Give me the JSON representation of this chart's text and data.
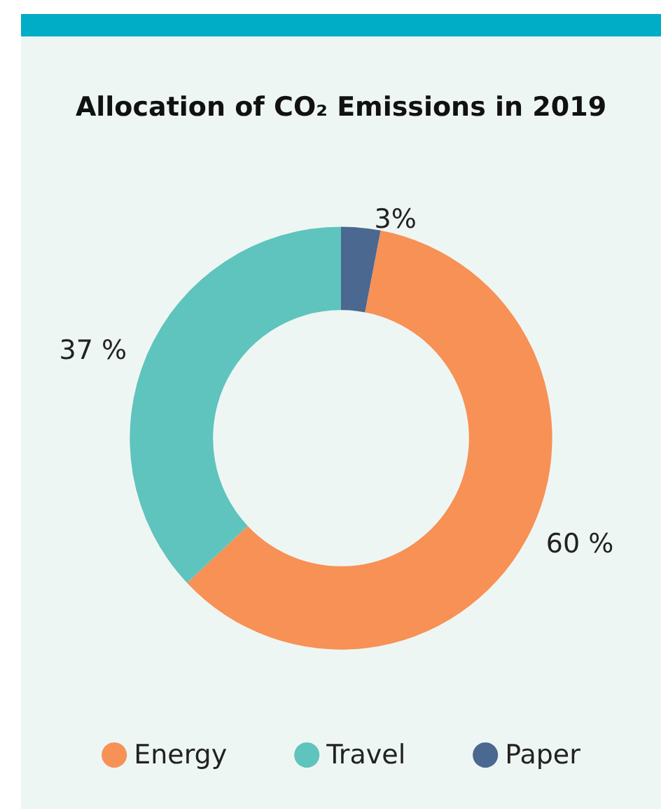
{
  "chart_data": {
    "type": "donut",
    "title": "Allocation of CO₂ Emissions in 2019",
    "categories": [
      "Energy",
      "Travel",
      "Paper"
    ],
    "values": [
      60,
      37,
      3
    ],
    "colors": [
      "#f79155",
      "#5ec4bd",
      "#4a6890"
    ],
    "value_labels": [
      "60 %",
      "37 %",
      "3%"
    ],
    "legend": "bottom"
  }
}
